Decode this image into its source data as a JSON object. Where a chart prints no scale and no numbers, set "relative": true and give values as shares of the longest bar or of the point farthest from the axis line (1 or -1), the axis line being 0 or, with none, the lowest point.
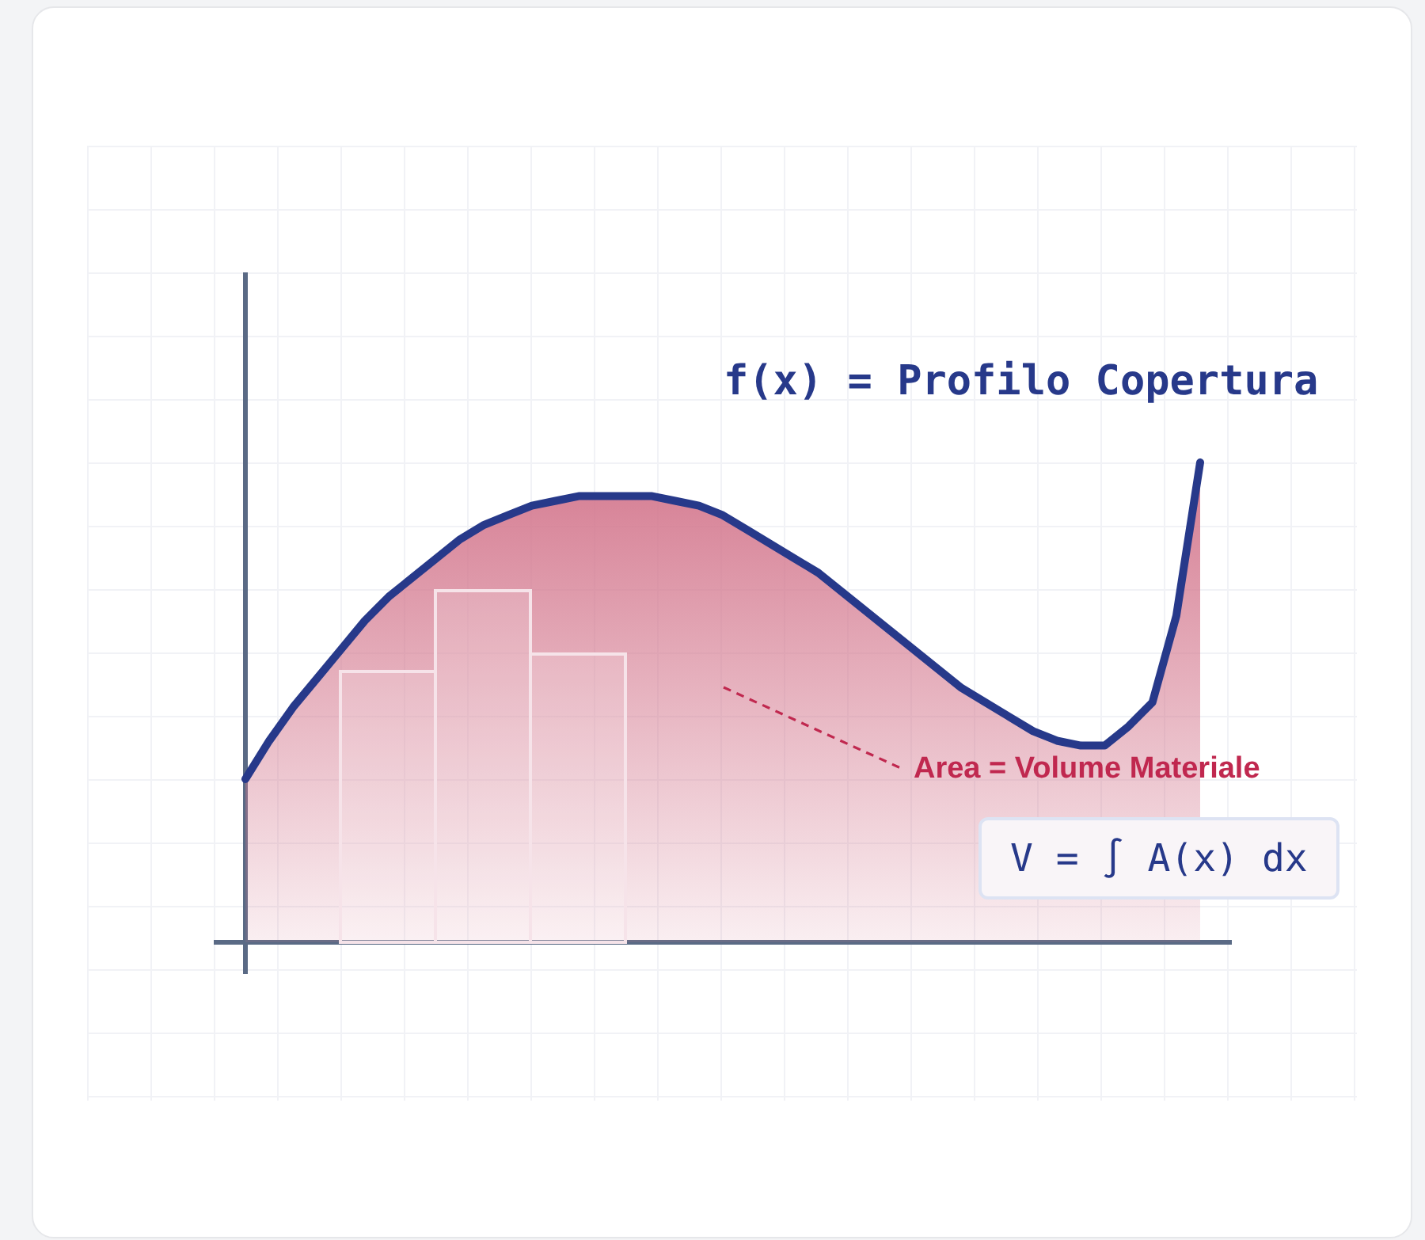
{
  "chart_data": {
    "type": "area",
    "relative": true,
    "categories": [
      null,
      null,
      null,
      null,
      null,
      null,
      null,
      null,
      null,
      null,
      null,
      null,
      null,
      null,
      null,
      null,
      null,
      null,
      null,
      null,
      null,
      null,
      null,
      null,
      null,
      null,
      null,
      null,
      null,
      null,
      null,
      null,
      null,
      null,
      null,
      null,
      null,
      null,
      null,
      null,
      null
    ],
    "series": [
      {
        "color": "#27398a",
        "values": [
          0.34,
          0.42,
          0.49,
          0.55,
          0.61,
          0.67,
          0.72,
          0.76,
          0.8,
          0.84,
          0.87,
          0.89,
          0.91,
          0.92,
          0.93,
          0.93,
          0.93,
          0.93,
          0.92,
          0.91,
          0.89,
          0.86,
          0.83,
          0.8,
          0.77,
          0.73,
          0.69,
          0.65,
          0.61,
          0.57,
          0.53,
          0.5,
          0.47,
          0.44,
          0.42,
          0.41,
          0.41,
          0.45,
          0.5,
          0.68,
          1
        ]
      }
    ],
    "annotations": [
      "f(x) = Profilo Copertura",
      "Area = Volume Materiale",
      "V = ∫ A(x) dx"
    ],
    "legend": false,
    "marker": "none",
    "line_style": "solid"
  }
}
